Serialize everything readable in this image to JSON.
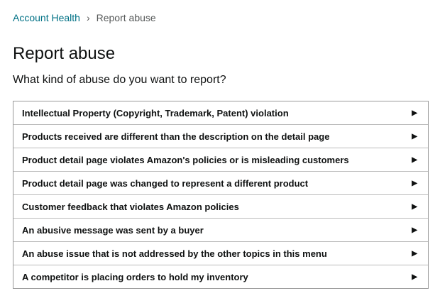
{
  "breadcrumb": {
    "parent": "Account Health",
    "current": "Report abuse"
  },
  "title": "Report abuse",
  "question": "What kind of abuse do you want to report?",
  "options": [
    "Intellectual Property (Copyright, Trademark, Patent) violation",
    "Products received are different than the description on the detail page",
    "Product detail page violates Amazon's policies or is misleading customers",
    "Product detail page was changed to represent a different product",
    "Customer feedback that violates Amazon policies",
    "An abusive message was sent by a buyer",
    "An abuse issue that is not addressed by the other topics in this menu",
    "A competitor is placing orders to hold my inventory"
  ],
  "icons": {
    "row": "triangle-right-icon",
    "separator": "chevron-right-icon"
  }
}
